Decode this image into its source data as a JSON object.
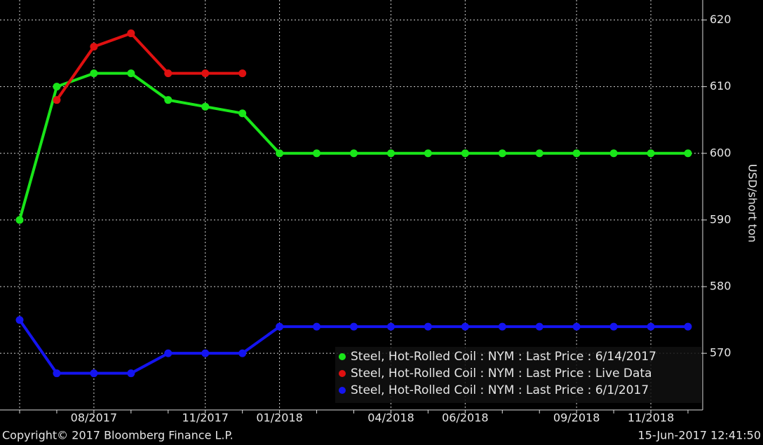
{
  "chart_data": {
    "type": "line",
    "categories": [
      null,
      null,
      "08/2017",
      null,
      null,
      "11/2017",
      null,
      "01/2018",
      null,
      null,
      "04/2018",
      null,
      "06/2018",
      null,
      null,
      "09/2018",
      null,
      "11/2018",
      null
    ],
    "series": [
      {
        "name": "Steel, Hot-Rolled Coil : NYM : Last Price : 6/14/2017",
        "color": "#19e619",
        "values": [
          590,
          610,
          612,
          612,
          608,
          607,
          606,
          600,
          600,
          600,
          600,
          600,
          600,
          600,
          600,
          600,
          600,
          600,
          600
        ]
      },
      {
        "name": "Steel, Hot-Rolled Coil : NYM : Last Price : Live Data",
        "color": "#e01010",
        "values": [
          null,
          608,
          616,
          618,
          612,
          612,
          612,
          null,
          null,
          null,
          null,
          null,
          null,
          null,
          null,
          null,
          null,
          null,
          null
        ]
      },
      {
        "name": "Steel, Hot-Rolled Coil : NYM : Last Price : 6/1/2017",
        "color": "#1414f0",
        "values": [
          575,
          567,
          567,
          567,
          570,
          570,
          570,
          574,
          574,
          574,
          574,
          574,
          574,
          574,
          574,
          574,
          574,
          574,
          574
        ]
      }
    ],
    "y_label": "USD/short ton",
    "ylim": [
      561.5,
      623
    ],
    "yticks": [
      570,
      580,
      590,
      600,
      610,
      620
    ],
    "grid": true,
    "legend": "bottom-right",
    "footer_left": "Copyright© 2017 Bloomberg Finance L.P.",
    "footer_right": "15-Jun-2017 12:41:50"
  }
}
